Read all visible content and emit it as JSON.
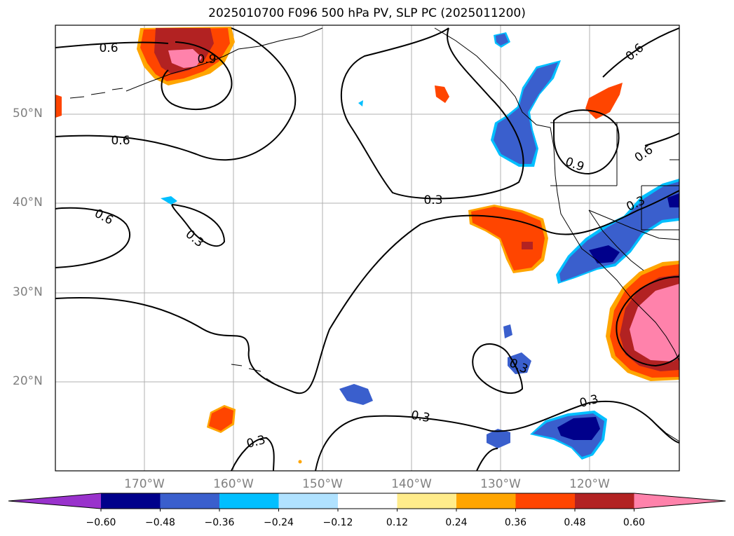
{
  "title": "2025010700 F096 500 hPa PV, SLP PC (2025011200)",
  "lat_labels": [
    "50°N",
    "40°N",
    "30°N",
    "20°N"
  ],
  "lon_labels": [
    "170°W",
    "160°W",
    "150°W",
    "140°W",
    "130°W",
    "120°W"
  ],
  "contour_labels": [
    "0.6",
    "0.9",
    "0.6",
    "0.6",
    "0.3",
    "0.3",
    "0.3",
    "0.3",
    "0.3",
    "0.9",
    "0.6",
    "0.3",
    "0.6",
    "0.3"
  ],
  "colorbar": {
    "ticks": [
      "−0.60",
      "−0.48",
      "−0.36",
      "−0.24",
      "−0.12",
      "0.12",
      "0.24",
      "0.36",
      "0.48",
      "0.60"
    ],
    "colors": [
      "#9932cc",
      "#00008b",
      "#3a5fcd",
      "#00bfff",
      "#b0e2ff",
      "#ffffff",
      "#ffec8b",
      "#ffa500",
      "#ff4500",
      "#b22222",
      "#ff82ab"
    ]
  }
}
